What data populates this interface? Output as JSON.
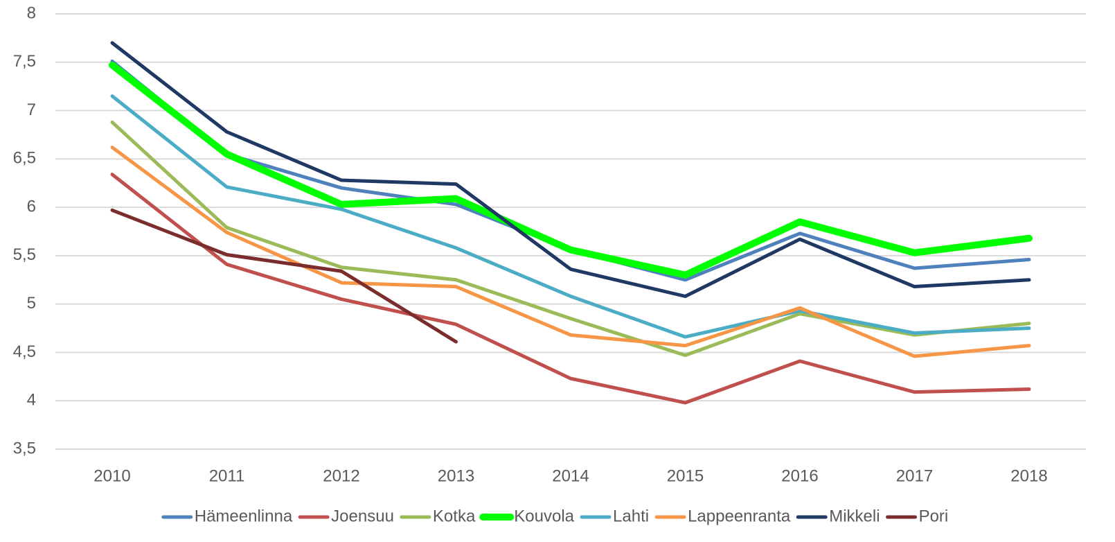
{
  "chart_data": {
    "type": "line",
    "categories": [
      "2010",
      "2011",
      "2012",
      "2013",
      "2014",
      "2015",
      "2016",
      "2017",
      "2018"
    ],
    "series": [
      {
        "name": "Hämeenlinna",
        "color": "#4f81bd",
        "values": [
          7.51,
          6.55,
          6.2,
          6.03,
          5.56,
          5.25,
          5.73,
          5.37,
          5.46
        ]
      },
      {
        "name": "Joensuu",
        "color": "#c0504d",
        "values": [
          6.34,
          5.41,
          5.05,
          4.79,
          4.23,
          3.98,
          4.41,
          4.09,
          4.12
        ]
      },
      {
        "name": "Kotka",
        "color": "#9bbb59",
        "values": [
          6.88,
          5.79,
          5.38,
          5.25,
          4.85,
          4.47,
          4.9,
          4.68,
          4.8
        ]
      },
      {
        "name": "Kouvola",
        "color": "#00ff00",
        "values": [
          7.47,
          6.55,
          6.03,
          6.09,
          5.56,
          5.3,
          5.85,
          5.53,
          5.68
        ]
      },
      {
        "name": "Lahti",
        "color": "#4bacc6",
        "values": [
          7.15,
          6.21,
          5.98,
          5.58,
          5.08,
          4.66,
          4.93,
          4.7,
          4.75
        ]
      },
      {
        "name": "Lappeenranta",
        "color": "#f79646",
        "values": [
          6.62,
          5.74,
          5.22,
          5.18,
          4.68,
          4.57,
          4.96,
          4.46,
          4.57
        ]
      },
      {
        "name": "Mikkeli",
        "color": "#1f3864",
        "values": [
          7.7,
          6.78,
          6.28,
          6.24,
          5.36,
          5.08,
          5.67,
          5.18,
          5.25
        ]
      },
      {
        "name": "Pori",
        "color": "#7b2c2c",
        "values": [
          5.97,
          5.51,
          5.34,
          4.61,
          null,
          null,
          null,
          null,
          null
        ]
      }
    ],
    "ylim": [
      3.5,
      8
    ],
    "yticks": [
      {
        "value": 3.5,
        "label": "3,5"
      },
      4,
      {
        "value": 4.5,
        "label": "4,5"
      },
      5,
      {
        "value": 5.5,
        "label": "5,5"
      },
      6,
      {
        "value": 6.5,
        "label": "6,5"
      },
      7,
      {
        "value": 7.5,
        "label": "7,5"
      },
      8
    ],
    "grid": true,
    "legend": "bottom"
  }
}
